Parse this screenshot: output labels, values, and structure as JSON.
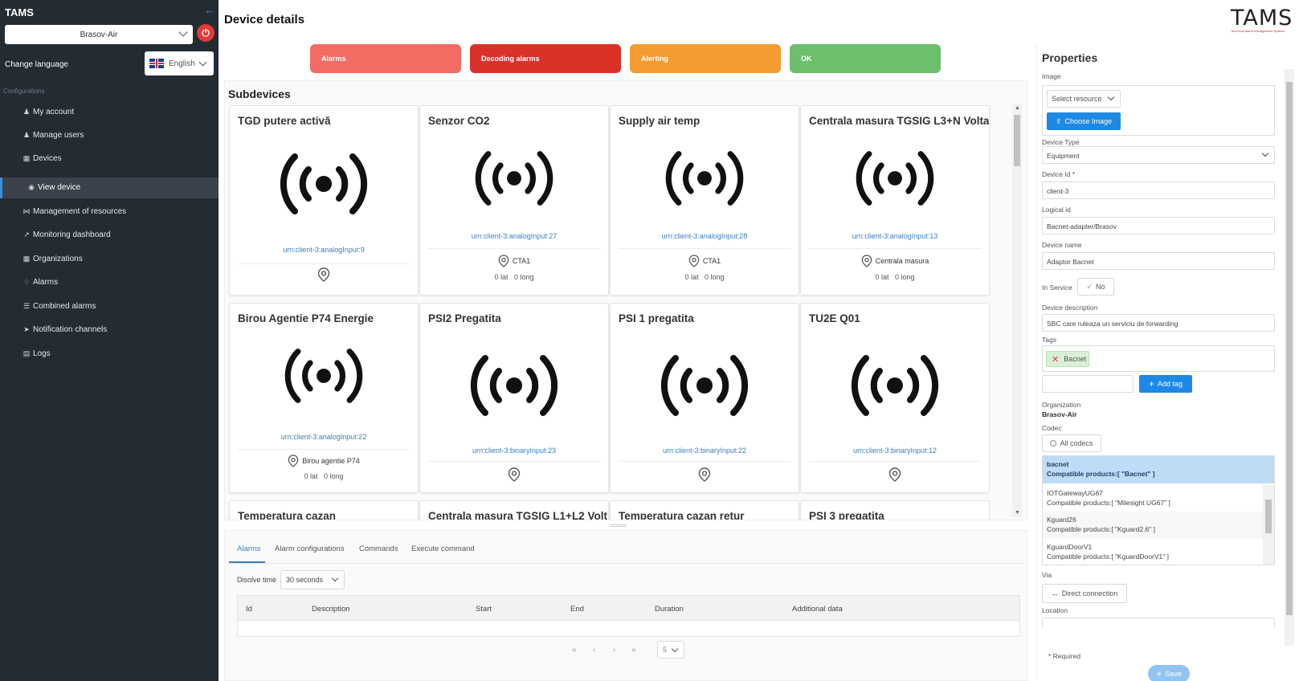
{
  "app": {
    "title": "TAMS",
    "logo_text": "TAMS",
    "logo_tagline": "Technical Alarm Management System"
  },
  "sidebar": {
    "org_selected": "Brasov-Air",
    "change_language_label": "Change language",
    "language": "English",
    "section_label": "Configurations",
    "items": [
      {
        "label": "My account",
        "icon": "user-gear-icon"
      },
      {
        "label": "Manage users",
        "icon": "users-icon"
      },
      {
        "label": "Devices",
        "icon": "devices-icon"
      },
      {
        "label": "View device",
        "icon": "eye-icon"
      },
      {
        "label": "Management of resources",
        "icon": "share-icon"
      },
      {
        "label": "Monitoring dashboard",
        "icon": "chart-icon"
      },
      {
        "label": "Organizations",
        "icon": "grid-icon"
      },
      {
        "label": "Alarms",
        "icon": "bell-icon"
      },
      {
        "label": "Combined alarms",
        "icon": "list-icon"
      },
      {
        "label": "Notification channels",
        "icon": "send-icon"
      },
      {
        "label": "Logs",
        "icon": "log-icon"
      }
    ]
  },
  "header": {
    "page_title": "Device details"
  },
  "status_buttons": [
    {
      "label": "Alarms",
      "color": "#f26c63"
    },
    {
      "label": "Decoding alarms",
      "color": "#dc3128"
    },
    {
      "label": "Alerting",
      "color": "#f49b32"
    },
    {
      "label": "OK",
      "color": "#6cbf6c"
    }
  ],
  "subdevices": {
    "title": "Subdevices",
    "cards": [
      {
        "title": "TGD putere activă",
        "urn": "urn:client-3:analogInput:9",
        "location": "",
        "lat": "",
        "long": ""
      },
      {
        "title": "Senzor CO2",
        "urn": "urn:client-3:analogInput:27",
        "location": "CTA1",
        "lat": "0 lat",
        "long": "0 long"
      },
      {
        "title": "Supply air temp",
        "urn": "urn:client-3:analogInput:28",
        "location": "CTA1",
        "lat": "0 lat",
        "long": "0 long"
      },
      {
        "title": "Centrala masura TGSIG L3+N Volta",
        "urn": "urn:client-3:analogInput:13",
        "location": "Centrala masura",
        "lat": "0 lat",
        "long": "0 long"
      },
      {
        "title": "Birou Agentie P74 Energie",
        "urn": "urn:client-3:analogInput:22",
        "location": "Birou agentie P74",
        "lat": "0 lat",
        "long": "0 long"
      },
      {
        "title": "PSI2 Pregatita",
        "urn": "urn:client-3:binaryInput:23",
        "location": "",
        "lat": "",
        "long": ""
      },
      {
        "title": "PSI 1 pregatita",
        "urn": "urn:client-3:binaryInput:22",
        "location": "",
        "lat": "",
        "long": ""
      },
      {
        "title": "TU2E Q01",
        "urn": "urn:client-3:binaryInput:12",
        "location": "",
        "lat": "",
        "long": ""
      },
      {
        "title": "Temperatura cazan"
      },
      {
        "title": "Centrala masura TGSIG L1+L2 Volt"
      },
      {
        "title": "Temperatura cazan retur"
      },
      {
        "title": "PSI 3 pregatita"
      }
    ]
  },
  "bottom": {
    "tabs": [
      "Alarms",
      "Alarm configurations",
      "Commands",
      "Execute command"
    ],
    "dissolve_label": "Disolve time",
    "dissolve_value": "30 seconds",
    "columns": [
      "Id",
      "Description",
      "Start",
      "End",
      "Duration",
      "Additional data"
    ],
    "pager": {
      "first": "«",
      "prev": "‹",
      "next": "›",
      "last": "»",
      "page_size": "5"
    }
  },
  "properties": {
    "title": "Properties",
    "image_label": "Image",
    "image_select_placeholder": "Select resource",
    "choose_image_label": "Choose Image",
    "device_type_label": "Device Type",
    "device_type_value": "Equipment",
    "device_id_label": "Device Id *",
    "device_id_value": "client-3",
    "logical_id_label": "Logical id",
    "logical_id_value": "Bacnet-adapter/Brasov",
    "device_name_label": "Device name",
    "device_name_value": "Adaptor Bacnet",
    "in_service_label": "In Service",
    "in_service_value": "No",
    "device_description_label": "Device description",
    "device_description_value": "SBC care ruleaza un serviciu de forwarding",
    "tags_label": "Tags",
    "tag": "Bacnet",
    "add_tag_label": "Add tag",
    "organization_label": "Organization",
    "organization_value": "Brasov-Air",
    "codec_label": "Codec",
    "all_codecs_label": "All codecs",
    "codecs": [
      {
        "name": "bacnet",
        "compat": "Compatible products:[ \"Bacnet\" ]",
        "selected": true
      },
      {
        "name": "IOTGatewayUG67",
        "compat": "Compatible products:[ \"Milesight UG67\" ]"
      },
      {
        "name": "Kguard26",
        "compat": "Compatible products:[ \"Kguard2.6\" ]"
      },
      {
        "name": "KguardDoorV1",
        "compat": "Compatible products:[ \"KguardDoorV1\" ]"
      }
    ],
    "via_label": "Via",
    "via_value": "Direct connection",
    "location_label": "Location",
    "required_note": "* Required",
    "save_label": "Save"
  }
}
